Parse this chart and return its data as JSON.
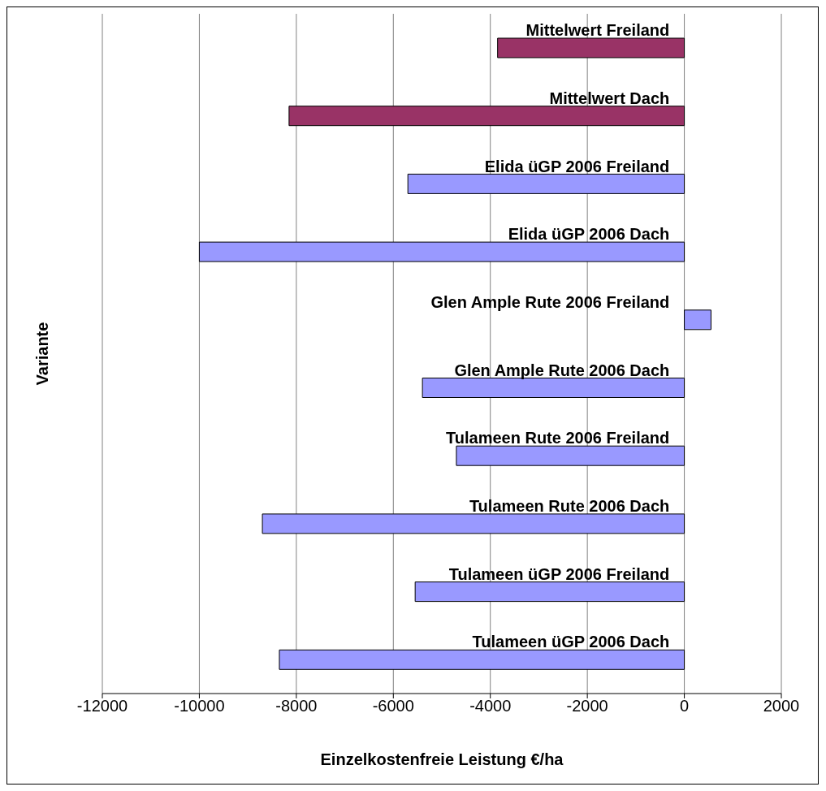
{
  "chart_data": {
    "type": "bar",
    "orientation": "horizontal",
    "xlabel": "Einzelkostenfreie Leistung €/ha",
    "ylabel": "Variante",
    "categories": [
      "Mittelwert Freiland",
      "Mittelwert Dach",
      "Elida üGP 2006 Freiland",
      "Elida üGP 2006 Dach",
      "Glen Ample Rute 2006 Freiland",
      "Glen Ample Rute 2006 Dach",
      "Tulameen Rute 2006 Freiland",
      "Tulameen Rute 2006 Dach",
      "Tulameen üGP 2006 Freiland",
      "Tulameen üGP 2006 Dach"
    ],
    "values": [
      -3850,
      -8150,
      -5700,
      -10000,
      550,
      -5400,
      -4700,
      -8700,
      -5550,
      -8350
    ],
    "colors": [
      "#993366",
      "#993366",
      "#9999ff",
      "#9999ff",
      "#9999ff",
      "#9999ff",
      "#9999ff",
      "#9999ff",
      "#9999ff",
      "#9999ff"
    ],
    "xlim": [
      -12000,
      2000
    ],
    "xticks": [
      -12000,
      -10000,
      -8000,
      -6000,
      -4000,
      -2000,
      0,
      2000
    ],
    "grid": "x"
  }
}
